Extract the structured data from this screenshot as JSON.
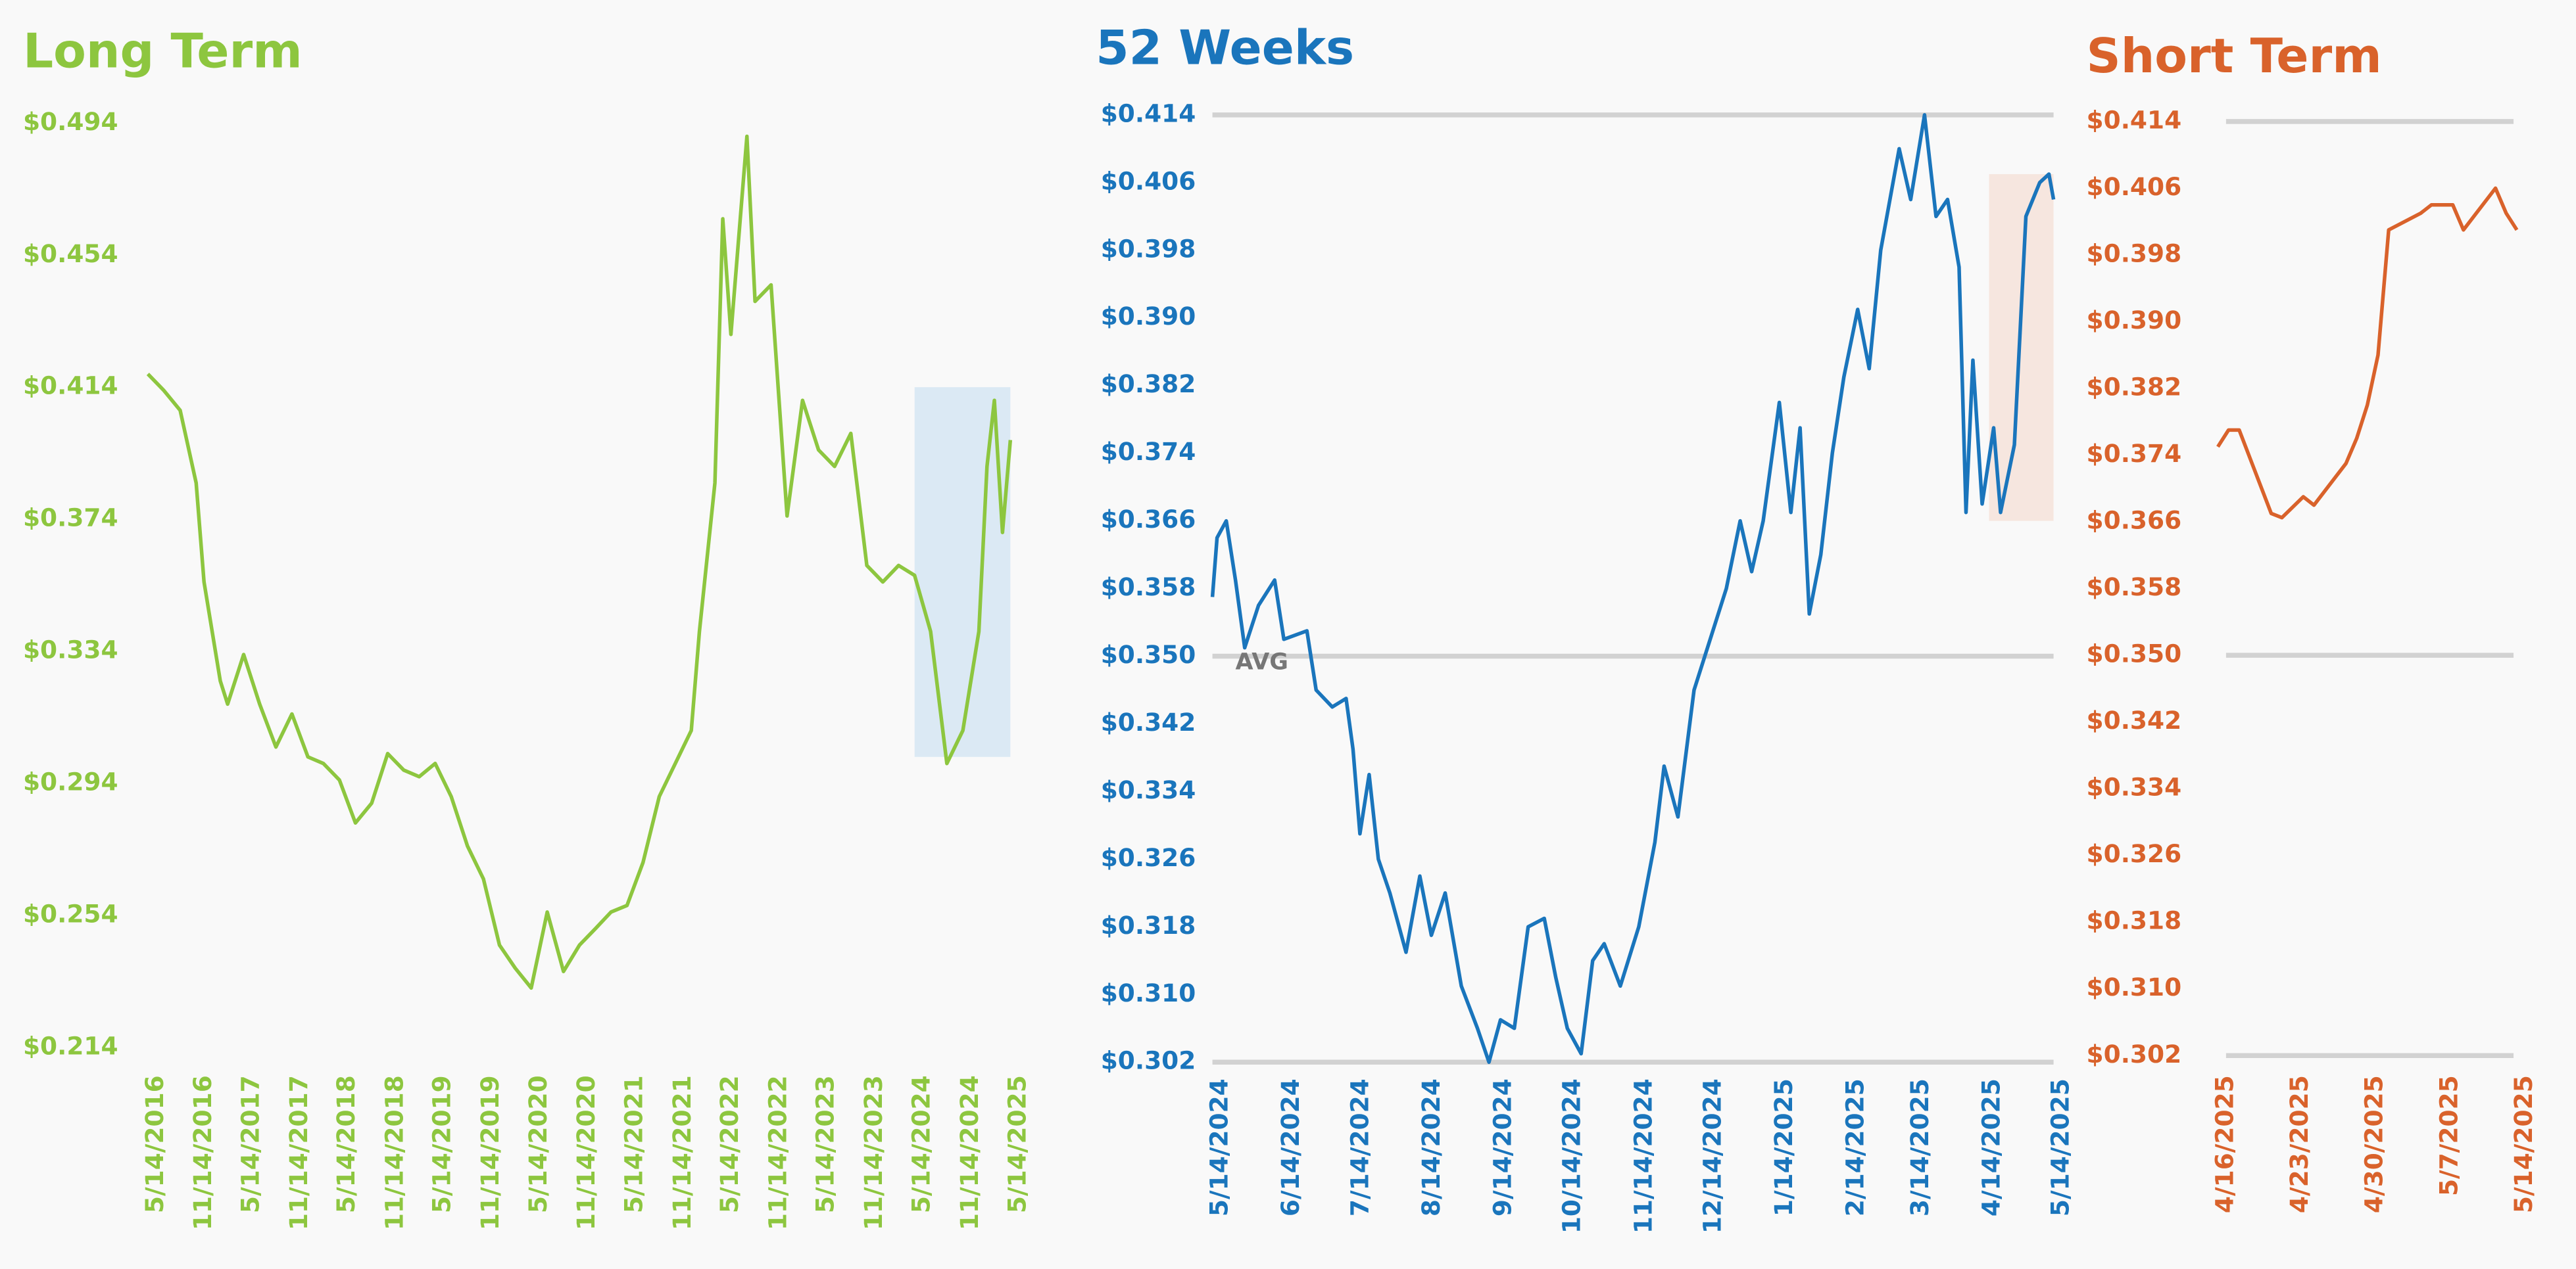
{
  "chart_data": [
    {
      "type": "line",
      "title": "Long Term",
      "color": "#8dc63f",
      "highlight_color": "#dbe9f4",
      "x": [
        "5/14/2016",
        "7/14/2016",
        "9/14/2016",
        "11/14/2016",
        "12/14/2016",
        "2/14/2017",
        "3/14/2017",
        "5/14/2017",
        "7/14/2017",
        "9/14/2017",
        "11/14/2017",
        "1/14/2018",
        "3/14/2018",
        "5/14/2018",
        "7/14/2018",
        "9/14/2018",
        "11/14/2018",
        "1/14/2019",
        "3/14/2019",
        "5/14/2019",
        "7/14/2019",
        "9/14/2019",
        "11/14/2019",
        "1/14/2020",
        "3/14/2020",
        "5/14/2020",
        "7/14/2020",
        "9/14/2020",
        "11/14/2020",
        "1/14/2021",
        "3/14/2021",
        "5/14/2021",
        "7/14/2021",
        "9/14/2021",
        "11/14/2021",
        "1/14/2022",
        "2/14/2022",
        "4/14/2022",
        "5/14/2022",
        "6/14/2022",
        "8/14/2022",
        "9/14/2022",
        "11/14/2022",
        "1/14/2023",
        "3/14/2023",
        "5/14/2023",
        "7/14/2023",
        "9/14/2023",
        "11/14/2023",
        "1/14/2024",
        "3/14/2024",
        "5/14/2024",
        "7/14/2024",
        "9/14/2024",
        "11/14/2024",
        "1/14/2025",
        "2/14/2025",
        "3/14/2025",
        "4/14/2025",
        "5/14/2025"
      ],
      "values": [
        0.418,
        0.413,
        0.407,
        0.385,
        0.355,
        0.325,
        0.318,
        0.333,
        0.318,
        0.305,
        0.315,
        0.302,
        0.3,
        0.295,
        0.282,
        0.288,
        0.303,
        0.298,
        0.296,
        0.3,
        0.29,
        0.275,
        0.265,
        0.245,
        0.238,
        0.232,
        0.255,
        0.237,
        0.245,
        0.25,
        0.255,
        0.257,
        0.27,
        0.29,
        0.3,
        0.31,
        0.34,
        0.385,
        0.465,
        0.43,
        0.49,
        0.44,
        0.445,
        0.375,
        0.41,
        0.395,
        0.39,
        0.4,
        0.36,
        0.355,
        0.36,
        0.357,
        0.34,
        0.3,
        0.31,
        0.34,
        0.39,
        0.41,
        0.37,
        0.398
      ],
      "xlim": [
        "5/14/2016",
        "5/14/2025"
      ],
      "xticks": [
        "5/14/2016",
        "11/14/2016",
        "5/14/2017",
        "11/14/2017",
        "5/14/2018",
        "11/14/2018",
        "5/14/2019",
        "11/14/2019",
        "5/14/2020",
        "11/14/2020",
        "5/14/2021",
        "11/14/2021",
        "5/14/2022",
        "11/14/2022",
        "5/14/2023",
        "11/14/2023",
        "5/14/2024",
        "11/14/2024",
        "5/14/2025"
      ],
      "ylim": [
        0.214,
        0.494
      ],
      "yticks": [
        {
          "value": 0.214,
          "label": "$0.214"
        },
        {
          "value": 0.254,
          "label": "$0.254"
        },
        {
          "value": 0.294,
          "label": "$0.294"
        },
        {
          "value": 0.334,
          "label": "$0.334"
        },
        {
          "value": 0.374,
          "label": "$0.374"
        },
        {
          "value": 0.414,
          "label": "$0.414"
        },
        {
          "value": 0.454,
          "label": "$0.454"
        },
        {
          "value": 0.494,
          "label": "$0.494"
        }
      ],
      "highlight": {
        "x": [
          "5/14/2024",
          "5/14/2025"
        ],
        "y": [
          0.302,
          0.414
        ]
      }
    },
    {
      "type": "line",
      "title": "52 Weeks",
      "color": "#1a75bc",
      "highlight_color": "#f6e6df",
      "x": [
        "5/14/2024",
        "5/16/2024",
        "5/20/2024",
        "5/24/2024",
        "5/28/2024",
        "6/3/2024",
        "6/10/2024",
        "6/14/2024",
        "6/24/2024",
        "6/28/2024",
        "7/5/2024",
        "7/11/2024",
        "7/14/2024",
        "7/17/2024",
        "7/21/2024",
        "7/25/2024",
        "7/30/2024",
        "8/6/2024",
        "8/12/2024",
        "8/17/2024",
        "8/23/2024",
        "8/30/2024",
        "9/6/2024",
        "9/11/2024",
        "9/16/2024",
        "9/22/2024",
        "9/28/2024",
        "10/5/2024",
        "10/10/2024",
        "10/15/2024",
        "10/21/2024",
        "10/26/2024",
        "10/31/2024",
        "11/7/2024",
        "11/15/2024",
        "11/22/2024",
        "11/26/2024",
        "12/2/2024",
        "12/9/2024",
        "12/16/2024",
        "12/23/2024",
        "12/29/2024",
        "1/3/2025",
        "1/8/2025",
        "1/15/2025",
        "1/20/2025",
        "1/24/2025",
        "1/28/2025",
        "2/2/2025",
        "2/7/2025",
        "2/12/2025",
        "2/18/2025",
        "2/23/2025",
        "2/28/2025",
        "3/8/2025",
        "3/13/2025",
        "3/19/2025",
        "3/24/2025",
        "3/29/2025",
        "4/3/2025",
        "4/6/2025",
        "4/9/2025",
        "4/13/2025",
        "4/18/2025",
        "4/21/2025",
        "4/27/2025",
        "5/2/2025",
        "5/8/2025",
        "5/12/2025",
        "5/14/2025"
      ],
      "values": [
        0.357,
        0.364,
        0.366,
        0.359,
        0.351,
        0.356,
        0.359,
        0.352,
        0.353,
        0.346,
        0.344,
        0.345,
        0.339,
        0.329,
        0.336,
        0.326,
        0.322,
        0.315,
        0.324,
        0.317,
        0.322,
        0.311,
        0.306,
        0.302,
        0.307,
        0.306,
        0.318,
        0.319,
        0.312,
        0.306,
        0.303,
        0.314,
        0.316,
        0.311,
        0.318,
        0.328,
        0.337,
        0.331,
        0.346,
        0.352,
        0.358,
        0.366,
        0.36,
        0.366,
        0.38,
        0.367,
        0.377,
        0.355,
        0.362,
        0.374,
        0.383,
        0.391,
        0.384,
        0.398,
        0.41,
        0.404,
        0.414,
        0.402,
        0.404,
        0.396,
        0.367,
        0.385,
        0.368,
        0.377,
        0.367,
        0.375,
        0.402,
        0.406,
        0.407,
        0.404
      ],
      "xlim": [
        "5/14/2024",
        "5/14/2025"
      ],
      "xticks": [
        "5/14/2024",
        "6/14/2024",
        "7/14/2024",
        "8/14/2024",
        "9/14/2024",
        "10/14/2024",
        "11/14/2024",
        "12/14/2024",
        "1/14/2025",
        "2/14/2025",
        "3/14/2025",
        "4/14/2025",
        "5/14/2025"
      ],
      "ylim": [
        0.302,
        0.414
      ],
      "yticks": [
        {
          "value": 0.302,
          "label": "$0.302"
        },
        {
          "value": 0.31,
          "label": "$0.310"
        },
        {
          "value": 0.318,
          "label": "$0.318"
        },
        {
          "value": 0.326,
          "label": "$0.326"
        },
        {
          "value": 0.334,
          "label": "$0.334"
        },
        {
          "value": 0.342,
          "label": "$0.342"
        },
        {
          "value": 0.35,
          "label": "$0.350"
        },
        {
          "value": 0.358,
          "label": "$0.358"
        },
        {
          "value": 0.366,
          "label": "$0.366"
        },
        {
          "value": 0.374,
          "label": "$0.374"
        },
        {
          "value": 0.382,
          "label": "$0.382"
        },
        {
          "value": 0.39,
          "label": "$0.390"
        },
        {
          "value": 0.398,
          "label": "$0.398"
        },
        {
          "value": 0.406,
          "label": "$0.406"
        },
        {
          "value": 0.414,
          "label": "$0.414"
        }
      ],
      "reference_lines": [
        {
          "value": 0.414
        },
        {
          "value": 0.35,
          "label": "AVG"
        },
        {
          "value": 0.302
        }
      ],
      "highlight": {
        "x": [
          "4/16/2025",
          "5/14/2025"
        ],
        "y": [
          0.366,
          0.407
        ]
      }
    },
    {
      "type": "line",
      "title": "Short Term",
      "color": "#d9622b",
      "x": [
        "4/16/2025",
        "4/17/2025",
        "4/18/2025",
        "4/21/2025",
        "4/22/2025",
        "4/24/2025",
        "4/25/2025",
        "4/28/2025",
        "4/29/2025",
        "4/30/2025",
        "5/1/2025",
        "5/2/2025",
        "5/5/2025",
        "5/6/2025",
        "5/7/2025",
        "5/8/2025",
        "5/9/2025",
        "5/12/2025",
        "5/13/2025",
        "5/14/2025"
      ],
      "values": [
        0.375,
        0.377,
        0.377,
        0.367,
        0.3665,
        0.369,
        0.368,
        0.373,
        0.376,
        0.38,
        0.386,
        0.401,
        0.403,
        0.404,
        0.404,
        0.404,
        0.401,
        0.406,
        0.403,
        0.401
      ],
      "xlim": [
        "4/16/2025",
        "5/14/2025"
      ],
      "xticks": [
        "4/16/2025",
        "4/23/2025",
        "4/30/2025",
        "5/7/2025",
        "5/14/2025"
      ],
      "ylim": [
        0.302,
        0.414
      ],
      "yticks": [
        {
          "value": 0.302,
          "label": "$0.302"
        },
        {
          "value": 0.31,
          "label": "$0.310"
        },
        {
          "value": 0.318,
          "label": "$0.318"
        },
        {
          "value": 0.326,
          "label": "$0.326"
        },
        {
          "value": 0.334,
          "label": "$0.334"
        },
        {
          "value": 0.342,
          "label": "$0.342"
        },
        {
          "value": 0.35,
          "label": "$0.350"
        },
        {
          "value": 0.358,
          "label": "$0.358"
        },
        {
          "value": 0.366,
          "label": "$0.366"
        },
        {
          "value": 0.374,
          "label": "$0.374"
        },
        {
          "value": 0.382,
          "label": "$0.382"
        },
        {
          "value": 0.39,
          "label": "$0.390"
        },
        {
          "value": 0.398,
          "label": "$0.398"
        },
        {
          "value": 0.406,
          "label": "$0.406"
        },
        {
          "value": 0.414,
          "label": "$0.414"
        }
      ],
      "reference_lines": [
        {
          "value": 0.414
        },
        {
          "value": 0.35
        },
        {
          "value": 0.302
        }
      ]
    }
  ]
}
